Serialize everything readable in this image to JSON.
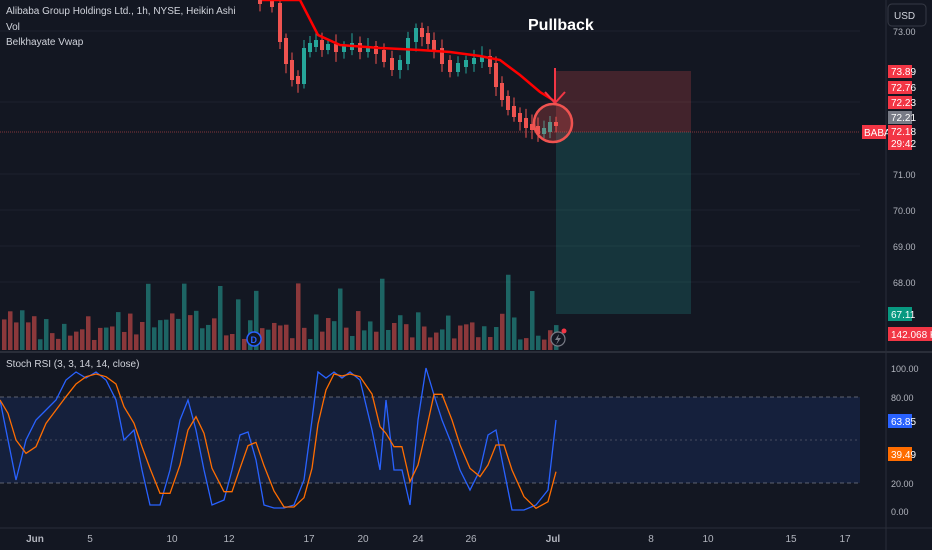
{
  "header": {
    "symbol_title": "Alibaba Group Holdings Ltd., 1h, NYSE, Heikin Ashi",
    "vol_label": "Vol",
    "vwap_label": "Belkhayate Vwap",
    "currency": "USD"
  },
  "annotation": {
    "pullback_text": "Pullback"
  },
  "stoch": {
    "label": "Stoch RSI (3, 3, 14, 14, close)",
    "k_value": "63.85",
    "d_value": "39.49"
  },
  "price_badges": {
    "p1": "73.89",
    "p2": "72.76",
    "p3": "72.23",
    "p4": "72.21",
    "symbol": "BABA",
    "last": "72.18",
    "countdown": "29:42",
    "target": "67.11",
    "volume": "142.068 K"
  },
  "colors": {
    "up": "#26a69a",
    "down": "#ef5350",
    "vwap": "#ff0000",
    "k_line": "#2962ff",
    "d_line": "#ff6d00",
    "bg": "#131722"
  },
  "chart_data": [
    {
      "type": "candlestick",
      "title": "Alibaba Group Holdings Ltd., 1h, NYSE, Heikin Ashi",
      "y_ticks": [
        "73.00",
        "72.00",
        "71.00",
        "70.00",
        "69.00",
        "68.00"
      ],
      "x_ticks": [
        "Jun",
        "5",
        "10",
        "12",
        "17",
        "20",
        "24",
        "26",
        "Jul",
        "8",
        "10",
        "15",
        "17"
      ],
      "ylim": [
        67.0,
        73.6
      ],
      "last_price": 72.18,
      "position": {
        "entry": 72.18,
        "stop": 73.89,
        "target": 67.11
      }
    },
    {
      "type": "bar",
      "name": "Vol",
      "last_value": "142.068 K"
    },
    {
      "type": "line",
      "name": "Stoch RSI (3, 3, 14, 14, close)",
      "y_ticks": [
        "100.00",
        "80.00",
        "20.00",
        "0.00"
      ],
      "ylim": [
        0,
        100
      ],
      "bands": [
        20,
        80
      ]
    }
  ]
}
